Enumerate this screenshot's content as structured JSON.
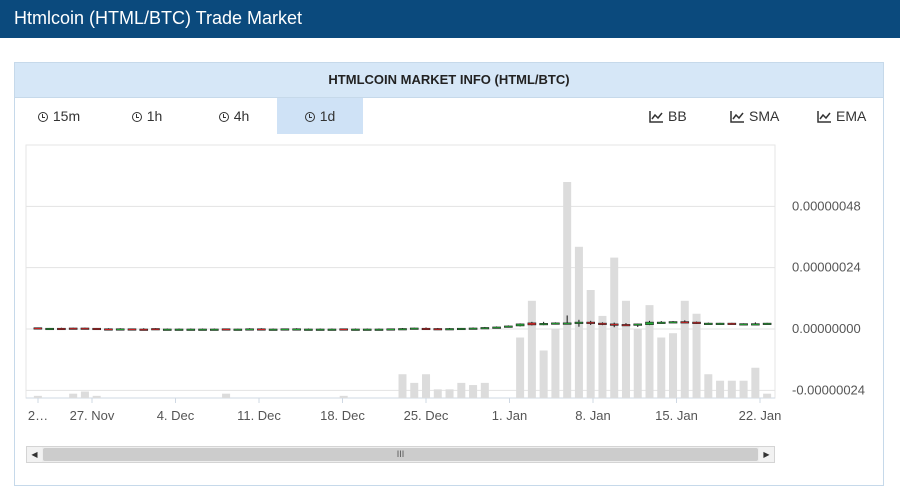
{
  "header": {
    "title": "Htmlcoin (HTML/BTC) Trade Market"
  },
  "panel": {
    "title": "HTMLCOIN MARKET INFO (HTML/BTC)"
  },
  "timeframes": [
    {
      "label": "15m",
      "active": false
    },
    {
      "label": "1h",
      "active": false
    },
    {
      "label": "4h",
      "active": false
    },
    {
      "label": "1d",
      "active": true
    }
  ],
  "indicators": [
    {
      "label": "BB",
      "icon": "line-chart-icon"
    },
    {
      "label": "SMA",
      "icon": "line-chart-icon"
    },
    {
      "label": "EMA",
      "icon": "line-chart-icon"
    }
  ],
  "colors": {
    "up": "#22aa33",
    "down": "#dd2222",
    "volume": "#dcdcdc",
    "header_bg": "#0b4a7d"
  },
  "chart_data": {
    "type": "candlestick",
    "y_tick_labels": [
      "0.00000048",
      "0.00000024",
      "0.00000000",
      "-0.00000024"
    ],
    "y_ticks": [
      4.8e-07,
      2.4e-07,
      0.0,
      -2.4e-07
    ],
    "ylim": [
      -2.7e-07,
      7.2e-07
    ],
    "x_tick_labels": [
      "2…",
      "27. Nov",
      "4. Dec",
      "11. Dec",
      "18. Dec",
      "25. Dec",
      "1. Jan",
      "8. Jan",
      "15. Jan",
      "22. Jan"
    ],
    "grid": true,
    "candles": [
      {
        "o": 5e-09,
        "h": 6e-09,
        "l": -1e-09,
        "c": 0.0,
        "v": 0.01
      },
      {
        "o": 1e-09,
        "h": 4e-09,
        "l": 0.0,
        "c": 3e-09,
        "v": 0.0
      },
      {
        "o": 3e-09,
        "h": 5e-09,
        "l": 0.0,
        "c": 1e-09,
        "v": 0.0
      },
      {
        "o": 4e-09,
        "h": 5e-09,
        "l": -2e-09,
        "c": -1e-09,
        "v": 0.02
      },
      {
        "o": 4e-09,
        "h": 5e-09,
        "l": -2e-09,
        "c": -1e-09,
        "v": 0.03
      },
      {
        "o": 3e-09,
        "h": 4e-09,
        "l": -2e-09,
        "c": -1e-09,
        "v": 0.01
      },
      {
        "o": 1e-09,
        "h": 3e-09,
        "l": -2e-09,
        "c": -1e-09,
        "v": 0.0
      },
      {
        "o": -1e-09,
        "h": 3e-09,
        "l": -2e-09,
        "c": 1e-09,
        "v": 0.0
      },
      {
        "o": 1e-09,
        "h": 2e-09,
        "l": -2e-09,
        "c": 0.0,
        "v": 0.0
      },
      {
        "o": 0.0,
        "h": 3e-09,
        "l": -2e-09,
        "c": -1e-09,
        "v": 0.0
      },
      {
        "o": 2e-09,
        "h": 3e-09,
        "l": -2e-09,
        "c": -1e-09,
        "v": 0.0
      },
      {
        "o": 0.0,
        "h": 2e-09,
        "l": -2e-09,
        "c": 0.0,
        "v": 0.0
      },
      {
        "o": 0.0,
        "h": 2e-09,
        "l": -2e-09,
        "c": 0.0,
        "v": 0.0
      },
      {
        "o": 0.0,
        "h": 2e-09,
        "l": -2e-09,
        "c": 0.0,
        "v": 0.0
      },
      {
        "o": 0.0,
        "h": 2e-09,
        "l": -2e-09,
        "c": 0.0,
        "v": 0.0
      },
      {
        "o": 0.0,
        "h": 2e-09,
        "l": -2e-09,
        "c": 0.0,
        "v": 0.0
      },
      {
        "o": 1e-09,
        "h": 2e-09,
        "l": -2e-09,
        "c": -1e-09,
        "v": 0.02
      },
      {
        "o": 0.0,
        "h": 1e-09,
        "l": -2e-09,
        "c": 0.0,
        "v": 0.0
      },
      {
        "o": -1e-09,
        "h": 3e-09,
        "l": -2e-09,
        "c": 1e-09,
        "v": 0.0
      },
      {
        "o": 1e-09,
        "h": 3e-09,
        "l": -2e-09,
        "c": -1e-09,
        "v": 0.0
      },
      {
        "o": 0.0,
        "h": 2e-09,
        "l": -2e-09,
        "c": 0.0,
        "v": 0.0
      },
      {
        "o": -1e-09,
        "h": 2e-09,
        "l": -2e-09,
        "c": 1e-09,
        "v": 0.0
      },
      {
        "o": 0.0,
        "h": 3e-09,
        "l": -2e-09,
        "c": 1e-09,
        "v": 0.0
      },
      {
        "o": 0.0,
        "h": 2e-09,
        "l": -2e-09,
        "c": 0.0,
        "v": 0.0
      },
      {
        "o": 0.0,
        "h": 2e-09,
        "l": -2e-09,
        "c": 0.0,
        "v": 0.0
      },
      {
        "o": 0.0,
        "h": 2e-09,
        "l": -2e-09,
        "c": 0.0,
        "v": 0.0
      },
      {
        "o": 1e-09,
        "h": 2e-09,
        "l": -2e-09,
        "c": -1e-09,
        "v": 0.01
      },
      {
        "o": 0.0,
        "h": 2e-09,
        "l": -2e-09,
        "c": 0.0,
        "v": 0.0
      },
      {
        "o": 0.0,
        "h": 2e-09,
        "l": -2e-09,
        "c": 0.0,
        "v": 0.0
      },
      {
        "o": -1e-09,
        "h": 2e-09,
        "l": -2e-09,
        "c": 0.0,
        "v": 0.0
      },
      {
        "o": -1e-09,
        "h": 2e-09,
        "l": -2e-09,
        "c": 1e-09,
        "v": 0.0
      },
      {
        "o": -1e-09,
        "h": 4e-09,
        "l": -2e-09,
        "c": 2e-09,
        "v": 0.11
      },
      {
        "o": 1e-09,
        "h": 5e-09,
        "l": 0.0,
        "c": 4e-09,
        "v": 0.07
      },
      {
        "o": 3e-09,
        "h": 6e-09,
        "l": -1e-09,
        "c": 0.0,
        "v": 0.11
      },
      {
        "o": 2e-09,
        "h": 4e-09,
        "l": -1e-09,
        "c": 1e-09,
        "v": 0.04
      },
      {
        "o": 0.0,
        "h": 4e-09,
        "l": -1e-09,
        "c": 2e-09,
        "v": 0.04
      },
      {
        "o": 1e-09,
        "h": 4e-09,
        "l": 0.0,
        "c": 3e-09,
        "v": 0.07
      },
      {
        "o": 2e-09,
        "h": 6e-09,
        "l": 1e-09,
        "c": 4e-09,
        "v": 0.06
      },
      {
        "o": 3e-09,
        "h": 8e-09,
        "l": 1e-09,
        "c": 6e-09,
        "v": 0.07
      },
      {
        "o": 6e-09,
        "h": 1e-08,
        "l": 4e-09,
        "c": 8e-09,
        "v": 0.0
      },
      {
        "o": 8e-09,
        "h": 1.4e-08,
        "l": 6e-09,
        "c": 1.2e-08,
        "v": 0.0
      },
      {
        "o": 1.2e-08,
        "h": 2.2e-08,
        "l": 1e-08,
        "c": 2e-08,
        "v": 0.28
      },
      {
        "o": 2.4e-08,
        "h": 2.8e-08,
        "l": 1.4e-08,
        "c": 1.6e-08,
        "v": 0.45
      },
      {
        "o": 1.8e-08,
        "h": 2.8e-08,
        "l": 1.5e-08,
        "c": 2.2e-08,
        "v": 0.22
      },
      {
        "o": 2e-08,
        "h": 2.6e-08,
        "l": 1.8e-08,
        "c": 2.4e-08,
        "v": 0.32
      },
      {
        "o": 2.4e-08,
        "h": 5.3e-08,
        "l": 2.3e-08,
        "c": 2.4e-08,
        "v": 1.0
      },
      {
        "o": 2.5e-08,
        "h": 3.6e-08,
        "l": 9e-09,
        "c": 2.7e-08,
        "v": 0.7
      },
      {
        "o": 2.7e-08,
        "h": 3.2e-08,
        "l": 1.6e-08,
        "c": 2.3e-08,
        "v": 0.5
      },
      {
        "o": 2.3e-08,
        "h": 2.6e-08,
        "l": 1.5e-08,
        "c": 1.9e-08,
        "v": 0.38
      },
      {
        "o": 2e-08,
        "h": 2.5e-08,
        "l": 7e-09,
        "c": 1.8e-08,
        "v": 0.65
      },
      {
        "o": 1.8e-08,
        "h": 2.3e-08,
        "l": 1.3e-08,
        "c": 1.5e-08,
        "v": 0.45
      },
      {
        "o": 1.5e-08,
        "h": 2.1e-08,
        "l": 8e-09,
        "c": 2e-08,
        "v": 0.32
      },
      {
        "o": 1.7e-08,
        "h": 3.2e-08,
        "l": 1.5e-08,
        "c": 2.7e-08,
        "v": 0.43
      },
      {
        "o": 2.7e-08,
        "h": 3.1e-08,
        "l": 2.4e-08,
        "c": 2.7e-08,
        "v": 0.28
      },
      {
        "o": 2.7e-08,
        "h": 3.1e-08,
        "l": 2.4e-08,
        "c": 2.9e-08,
        "v": 0.3
      },
      {
        "o": 2.9e-08,
        "h": 3.4e-08,
        "l": 2.5e-08,
        "c": 2.7e-08,
        "v": 0.45
      },
      {
        "o": 2.7e-08,
        "h": 2.9e-08,
        "l": 2e-08,
        "c": 2.1e-08,
        "v": 0.39
      },
      {
        "o": 2.1e-08,
        "h": 2.5e-08,
        "l": 2e-08,
        "c": 2.3e-08,
        "v": 0.11
      },
      {
        "o": 2.3e-08,
        "h": 2.4e-08,
        "l": 2.2e-08,
        "c": 2.3e-08,
        "v": 0.08
      },
      {
        "o": 2.3e-08,
        "h": 2.4e-08,
        "l": 2e-08,
        "c": 2.1e-08,
        "v": 0.08
      },
      {
        "o": 2.1e-08,
        "h": 2.2e-08,
        "l": 1.8e-08,
        "c": 2.1e-08,
        "v": 0.08
      },
      {
        "o": 2.1e-08,
        "h": 2.6e-08,
        "l": 1.9e-08,
        "c": 2.1e-08,
        "v": 0.14
      },
      {
        "o": 2.1e-08,
        "h": 2.4e-08,
        "l": 2.1e-08,
        "c": 2.3e-08,
        "v": 0.02
      }
    ]
  }
}
